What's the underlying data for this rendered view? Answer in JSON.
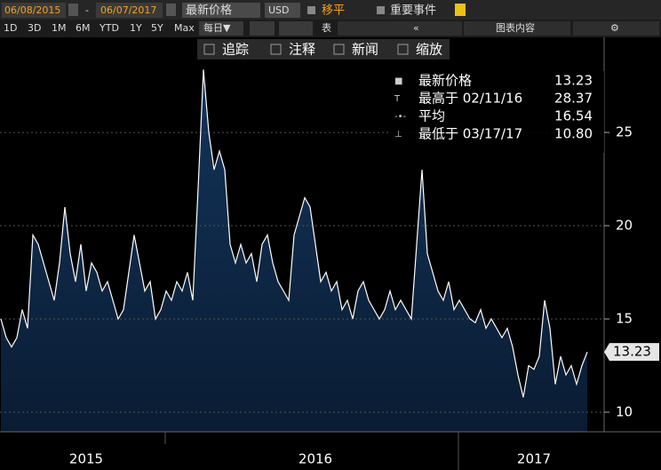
{
  "toolbar": {
    "start_date": "06/08/2015",
    "separator": "-",
    "end_date": "06/07/2017",
    "field": "最新价格",
    "currency": "USD",
    "moving_avg": "移平",
    "events": "重要事件",
    "chart_content": "图表内容"
  },
  "periods": [
    "1D",
    "3D",
    "1M",
    "6M",
    "YTD",
    "1Y",
    "5Y",
    "Max"
  ],
  "frequency": "每日▼",
  "table": "表",
  "tools": [
    "追踪",
    "注释",
    "新闻",
    "缩放"
  ],
  "legend": [
    {
      "label": "最新价格",
      "value": "13.23"
    },
    {
      "label": "最高于 02/11/16",
      "value": "28.37"
    },
    {
      "label": "平均",
      "value": "16.54"
    },
    {
      "label": "最低于 03/17/17",
      "value": "10.80"
    }
  ],
  "chart_data": {
    "type": "area",
    "categories": [
      null,
      null,
      null,
      null,
      null,
      null,
      null,
      null,
      null,
      null,
      null,
      null,
      null,
      null,
      null,
      null,
      "2015",
      null,
      null,
      null,
      null,
      null,
      null,
      null,
      null,
      null,
      null,
      null,
      null,
      null,
      null,
      null,
      null,
      null,
      null,
      null,
      null,
      null,
      null,
      null,
      null,
      null,
      null,
      null,
      null,
      null,
      null,
      null,
      null,
      null,
      null,
      null,
      null,
      null,
      null,
      null,
      null,
      null,
      null,
      "2016",
      null,
      null,
      null,
      null,
      null,
      null,
      null,
      null,
      null,
      null,
      null,
      null,
      null,
      null,
      null,
      null,
      null,
      null,
      null,
      null,
      null,
      null,
      null,
      null,
      null,
      null,
      null,
      null,
      null,
      null,
      null,
      null,
      null,
      null,
      null,
      null,
      null,
      null,
      null,
      null,
      "2017",
      null,
      null,
      null,
      null,
      null,
      null,
      null,
      null,
      null,
      null
    ],
    "series": [
      {
        "name": "最新价格",
        "color": "#ffffff",
        "values": [
          15.0,
          14.0,
          13.5,
          14.0,
          15.5,
          14.5,
          19.5,
          19.0,
          18.0,
          17.0,
          16.0,
          18.0,
          21.0,
          18.5,
          17.0,
          19.0,
          16.5,
          18.0,
          17.5,
          16.5,
          17.0,
          16.0,
          15.0,
          15.5,
          17.5,
          19.5,
          18.0,
          16.5,
          17.0,
          15.0,
          15.5,
          16.5,
          16.0,
          17.0,
          16.5,
          17.5,
          16.0,
          22.0,
          28.37,
          25.0,
          23.0,
          24.0,
          23.0,
          19.0,
          18.0,
          19.0,
          18.0,
          18.5,
          17.0,
          19.0,
          19.5,
          18.0,
          17.0,
          16.5,
          16.0,
          19.5,
          20.5,
          21.5,
          21.0,
          19.0,
          17.0,
          17.5,
          16.5,
          17.0,
          15.5,
          16.0,
          15.0,
          16.5,
          17.0,
          16.0,
          15.5,
          15.0,
          15.5,
          16.5,
          15.5,
          16.0,
          15.5,
          15.0,
          19.0,
          23.0,
          18.5,
          17.5,
          16.5,
          16.0,
          17.0,
          15.5,
          16.0,
          15.5,
          15.0,
          14.8,
          15.5,
          14.5,
          15.0,
          14.5,
          14.0,
          14.5,
          13.5,
          12.0,
          10.8,
          12.5,
          12.3,
          13.0,
          16.0,
          14.5,
          11.5,
          13.0,
          12.0,
          12.5,
          11.5,
          12.5,
          13.23
        ]
      }
    ],
    "fill_color": "#13345a",
    "ylim": [
      8.95,
      30.1
    ],
    "yticks": [
      10,
      15,
      20,
      25
    ],
    "grid": true
  }
}
